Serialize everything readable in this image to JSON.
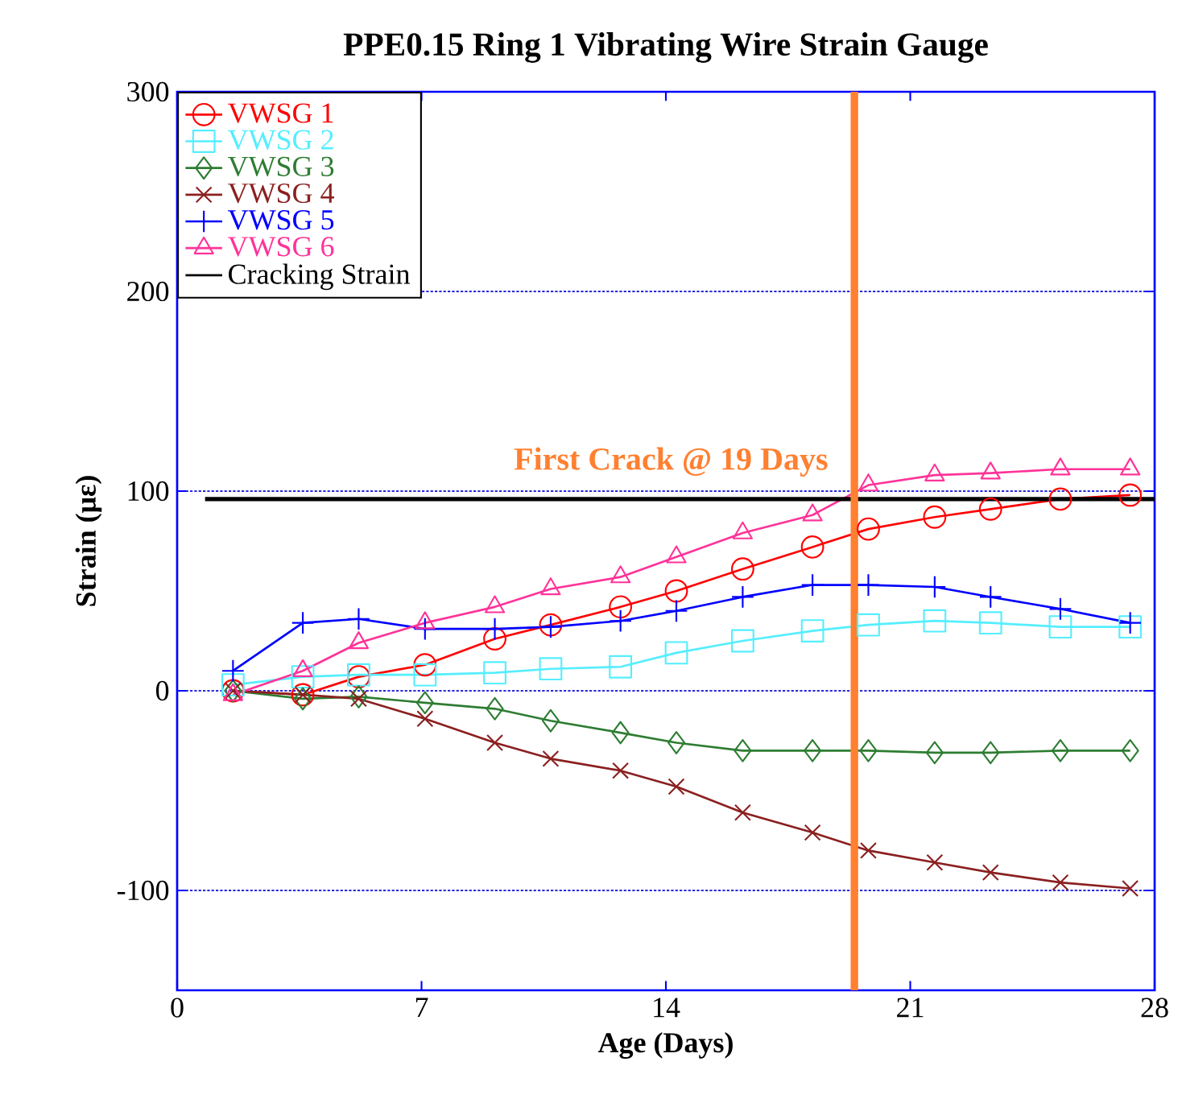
{
  "chart_data": {
    "type": "line",
    "title": "PPE0.15 Ring 1 Vibrating Wire Strain Gauge",
    "xlabel": "Age (Days)",
    "ylabel": "Strain (με)",
    "x": [
      1.6,
      3.6,
      5.2,
      7.1,
      9.1,
      10.7,
      12.7,
      14.3,
      16.2,
      18.2,
      19.8,
      21.7,
      23.3,
      25.3,
      27.3
    ],
    "series": [
      {
        "name": "VWSG 1",
        "color": "#ff0000",
        "marker": "circle",
        "values": [
          0,
          -2,
          7,
          13,
          26,
          33,
          42,
          50,
          61,
          72,
          81,
          87,
          91,
          96,
          98
        ]
      },
      {
        "name": "VWSG 2",
        "color": "#55eeff",
        "marker": "square",
        "values": [
          3,
          7,
          8,
          8,
          9,
          11,
          12,
          19,
          25,
          30,
          33,
          35,
          34,
          32,
          32
        ]
      },
      {
        "name": "VWSG 3",
        "color": "#2e7d32",
        "marker": "diamond",
        "values": [
          0,
          -4,
          -3,
          -6,
          -9,
          -15,
          -21,
          -26,
          -30,
          -30,
          -30,
          -31,
          -31,
          -30,
          -30
        ]
      },
      {
        "name": "VWSG 4",
        "color": "#8b2020",
        "marker": "cross",
        "values": [
          0,
          -2,
          -4,
          -14,
          -26,
          -34,
          -40,
          -48,
          -61,
          -71,
          -80,
          -86,
          -91,
          -96,
          -99
        ]
      },
      {
        "name": "VWSG 5",
        "color": "#0000ff",
        "marker": "plus",
        "values": [
          10,
          34,
          36,
          31,
          31,
          32,
          35,
          40,
          47,
          53,
          53,
          52,
          47,
          41,
          34
        ]
      },
      {
        "name": "VWSG 6",
        "color": "#ff3399",
        "marker": "triangle",
        "values": [
          -2,
          10,
          24,
          34,
          42,
          51,
          57,
          67,
          79,
          88,
          103,
          108,
          109,
          111,
          111
        ]
      },
      {
        "name": "Cracking Strain",
        "color": "#000000",
        "marker": "none",
        "x": [
          0.8,
          28
        ],
        "values": [
          96,
          96
        ]
      }
    ],
    "ref_lines": [
      {
        "axis": "x",
        "value": 19.4,
        "label": "First Crack @ 19 Days",
        "color": "#ff8030"
      }
    ],
    "xlim": [
      0,
      28
    ],
    "ylim": [
      -150,
      300
    ],
    "xticks": [
      0,
      7,
      14,
      21,
      28
    ],
    "yticks": [
      -100,
      0,
      100,
      200,
      300
    ],
    "grid": "y",
    "legend": "top left"
  }
}
